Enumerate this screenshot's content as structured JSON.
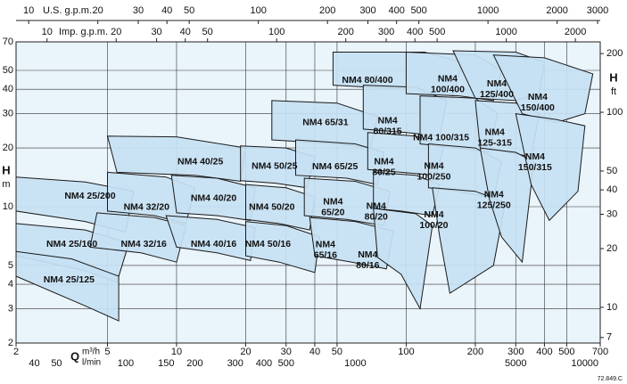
{
  "chart_data": {
    "type": "area-map",
    "log_scale": true,
    "grid": true,
    "fill": "#c7e1f3",
    "stroke": "#1a1a1a",
    "xlabel": "Q",
    "xunit": "m³/h",
    "xlim": [
      2,
      700
    ],
    "xticks": [
      2,
      5,
      10,
      20,
      30,
      40,
      50,
      100,
      200,
      300,
      400,
      500,
      700
    ],
    "ylabel": "H",
    "yunit": "m",
    "ylim": [
      2,
      70
    ],
    "yticks": [
      2,
      3,
      4,
      5,
      10,
      20,
      30,
      40,
      50,
      70
    ],
    "y2label": "H",
    "y2unit": "ft",
    "y2lim": [
      6.56,
      229.7
    ],
    "y2ticks": [
      7,
      10,
      20,
      30,
      40,
      50,
      100,
      200
    ],
    "x_us": {
      "label": "U.S. g.p.m.",
      "lim": [
        8.81,
        3082
      ],
      "ticks": [
        10,
        20,
        30,
        40,
        50,
        100,
        200,
        300,
        400,
        500,
        1000,
        2000,
        3000
      ]
    },
    "x_imp": {
      "label": "Imp. g.p.m.",
      "lim": [
        7.33,
        2566
      ],
      "ticks": [
        10,
        20,
        30,
        40,
        50,
        100,
        200,
        300,
        400,
        500,
        1000,
        2000
      ]
    },
    "x_lmin": {
      "label": "l/min",
      "lim": [
        33.3,
        11667
      ],
      "ticks": [
        40,
        50,
        100,
        150,
        200,
        300,
        400,
        500,
        1000,
        5000,
        10000
      ]
    },
    "note": "72.849.C",
    "regions": [
      {
        "label": [
          "NM4 25/200"
        ],
        "at": [
          4.2,
          11.3
        ],
        "points": [
          [
            2,
            14.2
          ],
          [
            4,
            13.4
          ],
          [
            6.5,
            12
          ],
          [
            6,
            7.4
          ],
          [
            4,
            8.4
          ],
          [
            2,
            9.5
          ]
        ]
      },
      {
        "label": [
          "NM4 25/160"
        ],
        "at": [
          3.5,
          6.4
        ],
        "points": [
          [
            2,
            8.2
          ],
          [
            4,
            7.6
          ],
          [
            6.2,
            6.5
          ],
          [
            5.5,
            4.1
          ],
          [
            4,
            4.7
          ],
          [
            2,
            5.6
          ]
        ]
      },
      {
        "label": [
          "NM4 25/125"
        ],
        "at": [
          3.4,
          4.2
        ],
        "points": [
          [
            2,
            5.9
          ],
          [
            3.5,
            5.4
          ],
          [
            5.6,
            4.4
          ],
          [
            5.6,
            2.6
          ],
          [
            4,
            3.1
          ],
          [
            2,
            4.4
          ]
        ]
      },
      {
        "label": [
          "NM4 40/25"
        ],
        "at": [
          12.7,
          17
        ],
        "points": [
          [
            5,
            23
          ],
          [
            10,
            22.8
          ],
          [
            20,
            20
          ],
          [
            19,
            13.5
          ],
          [
            12,
            14.5
          ],
          [
            5.5,
            15
          ]
        ]
      },
      {
        "label": [
          "NM4 32/20"
        ],
        "at": [
          7.4,
          9.9
        ],
        "points": [
          [
            5,
            15
          ],
          [
            9,
            14.2
          ],
          [
            12,
            12.5
          ],
          [
            11,
            8.2
          ],
          [
            8,
            9
          ],
          [
            5,
            9.5
          ]
        ]
      },
      {
        "label": [
          "NM4 40/20"
        ],
        "at": [
          14.5,
          11
        ],
        "points": [
          [
            9.5,
            14.5
          ],
          [
            15,
            14
          ],
          [
            22,
            12.5
          ],
          [
            21,
            8.5
          ],
          [
            15,
            9
          ],
          [
            10,
            9.3
          ]
        ]
      },
      {
        "label": [
          "NM4 32/16"
        ],
        "at": [
          7.2,
          6.4
        ],
        "points": [
          [
            4.5,
            9.3
          ],
          [
            8,
            8.8
          ],
          [
            11,
            8
          ],
          [
            10,
            5.2
          ],
          [
            7,
            5.8
          ],
          [
            4.2,
            6.2
          ]
        ]
      },
      {
        "label": [
          "NM4 40/16"
        ],
        "at": [
          14.5,
          6.4
        ],
        "points": [
          [
            9,
            9
          ],
          [
            15,
            8.6
          ],
          [
            22,
            7.8
          ],
          [
            21,
            5.3
          ],
          [
            15,
            5.8
          ],
          [
            10,
            6.2
          ]
        ]
      },
      {
        "label": [
          "NM4 65/31"
        ],
        "at": [
          44.5,
          26.9
        ],
        "points": [
          [
            26,
            35
          ],
          [
            50,
            34
          ],
          [
            75,
            29
          ],
          [
            70,
            20
          ],
          [
            50,
            21
          ],
          [
            26,
            22
          ]
        ]
      },
      {
        "label": [
          "NM4 50/25"
        ],
        "at": [
          26.7,
          16.1
        ],
        "points": [
          [
            19,
            20.5
          ],
          [
            30,
            20
          ],
          [
            40,
            18
          ],
          [
            37,
            12.5
          ],
          [
            27,
            13.2
          ],
          [
            19,
            13.6
          ]
        ]
      },
      {
        "label": [
          "NM4 50/20"
        ],
        "at": [
          26,
          9.9
        ],
        "points": [
          [
            20,
            13
          ],
          [
            30,
            12.5
          ],
          [
            40,
            11.2
          ],
          [
            38,
            7.6
          ],
          [
            28,
            8.2
          ],
          [
            20,
            8.6
          ]
        ]
      },
      {
        "label": [
          "NM4 50/16"
        ],
        "at": [
          25,
          6.4
        ],
        "points": [
          [
            20,
            8.4
          ],
          [
            30,
            8
          ],
          [
            42,
            7
          ],
          [
            40,
            4.6
          ],
          [
            28,
            5.2
          ],
          [
            20,
            5.6
          ]
        ]
      },
      {
        "label": [
          "NM4 65/25"
        ],
        "at": [
          49,
          16
        ],
        "points": [
          [
            33,
            22
          ],
          [
            60,
            21
          ],
          [
            80,
            19
          ],
          [
            75,
            13
          ],
          [
            55,
            14
          ],
          [
            33,
            14.5
          ]
        ]
      },
      {
        "label": [
          "NM4",
          "65/20"
        ],
        "at": [
          48,
          9.9
        ],
        "points": [
          [
            36,
            14
          ],
          [
            60,
            13.5
          ],
          [
            85,
            12
          ],
          [
            80,
            8
          ],
          [
            55,
            8.6
          ],
          [
            36,
            9
          ]
        ]
      },
      {
        "label": [
          "NM4",
          "65/16"
        ],
        "at": [
          44.5,
          6.0
        ],
        "points": [
          [
            38,
            8.8
          ],
          [
            60,
            8.4
          ],
          [
            88,
            7.5
          ],
          [
            82,
            4.8
          ],
          [
            58,
            5.2
          ],
          [
            40,
            5.6
          ]
        ]
      },
      {
        "label": [
          "NM4 80/400"
        ],
        "at": [
          67.8,
          44.5
        ],
        "points": [
          [
            48,
            62
          ],
          [
            120,
            62
          ],
          [
            175,
            55
          ],
          [
            160,
            37
          ],
          [
            100,
            40
          ],
          [
            48,
            42
          ]
        ]
      },
      {
        "label": [
          "NM4",
          "80/315"
        ],
        "at": [
          83,
          25.8
        ],
        "points": [
          [
            65,
            42
          ],
          [
            110,
            41
          ],
          [
            150,
            35
          ],
          [
            140,
            23
          ],
          [
            100,
            24
          ],
          [
            65,
            25
          ]
        ]
      },
      {
        "label": [
          "NM4",
          "80/25"
        ],
        "at": [
          80,
          15.9
        ],
        "points": [
          [
            68,
            24
          ],
          [
            110,
            23
          ],
          [
            145,
            20
          ],
          [
            135,
            14.5
          ],
          [
            95,
            15
          ],
          [
            68,
            15.5
          ]
        ]
      },
      {
        "label": [
          "NM4",
          "80/20"
        ],
        "at": [
          74,
          9.4
        ],
        "points": [
          [
            72,
            15
          ],
          [
            110,
            14.5
          ],
          [
            140,
            13
          ],
          [
            130,
            9
          ],
          [
            95,
            9.5
          ],
          [
            72,
            9.8
          ]
        ]
      },
      {
        "label": [
          "NM4",
          "80/16"
        ],
        "at": [
          68,
          5.3
        ],
        "points": [
          [
            72,
            9.8
          ],
          [
            110,
            9.2
          ],
          [
            130,
            8
          ],
          [
            115,
            3
          ],
          [
            95,
            4.5
          ],
          [
            75,
            5.5
          ]
        ]
      },
      {
        "label": [
          "NM4",
          "100/400"
        ],
        "at": [
          151.6,
          42.3
        ],
        "points": [
          [
            100,
            62
          ],
          [
            200,
            60
          ],
          [
            260,
            50
          ],
          [
            240,
            35
          ],
          [
            170,
            37
          ],
          [
            100,
            38
          ]
        ]
      },
      {
        "label": [
          "NM4 100/315"
        ],
        "at": [
          142,
          22.5
        ],
        "points": [
          [
            115,
            37
          ],
          [
            200,
            36
          ],
          [
            250,
            30
          ],
          [
            230,
            19
          ],
          [
            170,
            20
          ],
          [
            115,
            21
          ]
        ]
      },
      {
        "label": [
          "NM4",
          "100/250"
        ],
        "at": [
          132,
          15.1
        ],
        "points": [
          [
            125,
            21
          ],
          [
            200,
            20
          ],
          [
            260,
            17
          ],
          [
            240,
            11
          ],
          [
            170,
            12
          ],
          [
            125,
            12.5
          ]
        ]
      },
      {
        "label": [
          "NM4",
          "100/20"
        ],
        "at": [
          132,
          8.5
        ],
        "points": [
          [
            130,
            12.5
          ],
          [
            200,
            12
          ],
          [
            270,
            10.5
          ],
          [
            240,
            5
          ],
          [
            155,
            3.6
          ],
          [
            140,
            7
          ]
        ]
      },
      {
        "label": [
          "NM4",
          "125/400"
        ],
        "at": [
          248,
          40
        ],
        "points": [
          [
            160,
            63
          ],
          [
            300,
            62
          ],
          [
            400,
            55
          ],
          [
            380,
            38
          ],
          [
            300,
            35
          ],
          [
            200,
            36
          ]
        ]
      },
      {
        "label": [
          "NM4",
          "125-315"
        ],
        "at": [
          243,
          22.5
        ],
        "points": [
          [
            200,
            35
          ],
          [
            300,
            34
          ],
          [
            380,
            30
          ],
          [
            350,
            18
          ],
          [
            280,
            19
          ],
          [
            210,
            20
          ]
        ]
      },
      {
        "label": [
          "NM4",
          "125/250"
        ],
        "at": [
          241,
          10.8
        ],
        "points": [
          [
            210,
            20
          ],
          [
            300,
            19
          ],
          [
            360,
            17
          ],
          [
            320,
            5.2
          ],
          [
            260,
            7
          ],
          [
            230,
            11
          ]
        ]
      },
      {
        "label": [
          "NM4",
          "150/400"
        ],
        "at": [
          374,
          34.2
        ],
        "points": [
          [
            240,
            60
          ],
          [
            400,
            58
          ],
          [
            650,
            48
          ],
          [
            600,
            30
          ],
          [
            450,
            27
          ],
          [
            320,
            30
          ]
        ]
      },
      {
        "label": [
          "NM4",
          "150/315"
        ],
        "at": [
          364,
          16.9
        ],
        "points": [
          [
            300,
            30
          ],
          [
            450,
            28
          ],
          [
            600,
            26
          ],
          [
            560,
            12
          ],
          [
            420,
            8.5
          ],
          [
            350,
            13
          ]
        ]
      }
    ]
  }
}
